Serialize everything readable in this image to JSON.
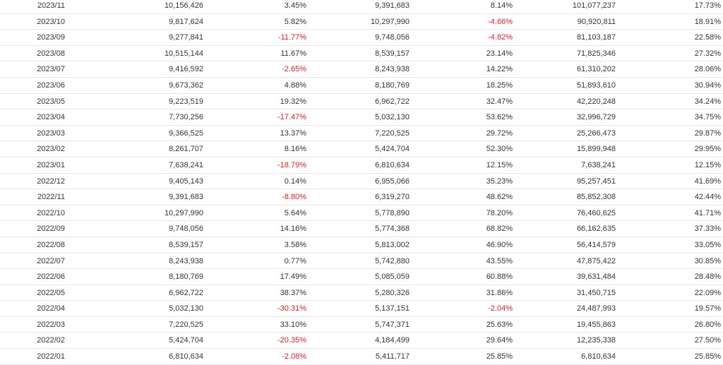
{
  "table": {
    "rows": [
      {
        "month": "2023/11",
        "revenue": "10,156,426",
        "mom": "3.45%",
        "last_year": "9,391,683",
        "yoy": "8.14%",
        "cumulative": "101,077,237",
        "cum_yoy": "17.73%"
      },
      {
        "month": "2023/10",
        "revenue": "9,817,624",
        "mom": "5.82%",
        "last_year": "10,297,990",
        "yoy": "-4.66%",
        "cumulative": "90,920,811",
        "cum_yoy": "18.91%"
      },
      {
        "month": "2023/09",
        "revenue": "9,277,841",
        "mom": "-11.77%",
        "last_year": "9,748,056",
        "yoy": "-4.82%",
        "cumulative": "81,103,187",
        "cum_yoy": "22.58%"
      },
      {
        "month": "2023/08",
        "revenue": "10,515,144",
        "mom": "11.67%",
        "last_year": "8,539,157",
        "yoy": "23.14%",
        "cumulative": "71,825,346",
        "cum_yoy": "27.32%"
      },
      {
        "month": "2023/07",
        "revenue": "9,416,592",
        "mom": "-2.65%",
        "last_year": "8,243,938",
        "yoy": "14.22%",
        "cumulative": "61,310,202",
        "cum_yoy": "28.06%"
      },
      {
        "month": "2023/06",
        "revenue": "9,673,362",
        "mom": "4.88%",
        "last_year": "8,180,769",
        "yoy": "18.25%",
        "cumulative": "51,893,610",
        "cum_yoy": "30.94%"
      },
      {
        "month": "2023/05",
        "revenue": "9,223,519",
        "mom": "19.32%",
        "last_year": "6,962,722",
        "yoy": "32.47%",
        "cumulative": "42,220,248",
        "cum_yoy": "34.24%"
      },
      {
        "month": "2023/04",
        "revenue": "7,730,256",
        "mom": "-17.47%",
        "last_year": "5,032,130",
        "yoy": "53.62%",
        "cumulative": "32,996,729",
        "cum_yoy": "34.75%"
      },
      {
        "month": "2023/03",
        "revenue": "9,366,525",
        "mom": "13.37%",
        "last_year": "7,220,525",
        "yoy": "29.72%",
        "cumulative": "25,266,473",
        "cum_yoy": "29.87%"
      },
      {
        "month": "2023/02",
        "revenue": "8,261,707",
        "mom": "8.16%",
        "last_year": "5,424,704",
        "yoy": "52.30%",
        "cumulative": "15,899,948",
        "cum_yoy": "29.95%"
      },
      {
        "month": "2023/01",
        "revenue": "7,638,241",
        "mom": "-18.79%",
        "last_year": "6,810,634",
        "yoy": "12.15%",
        "cumulative": "7,638,241",
        "cum_yoy": "12.15%"
      },
      {
        "month": "2022/12",
        "revenue": "9,405,143",
        "mom": "0.14%",
        "last_year": "6,955,066",
        "yoy": "35.23%",
        "cumulative": "95,257,451",
        "cum_yoy": "41.69%"
      },
      {
        "month": "2022/11",
        "revenue": "9,391,683",
        "mom": "-8.80%",
        "last_year": "6,319,270",
        "yoy": "48.62%",
        "cumulative": "85,852,308",
        "cum_yoy": "42.44%"
      },
      {
        "month": "2022/10",
        "revenue": "10,297,990",
        "mom": "5.64%",
        "last_year": "5,778,890",
        "yoy": "78.20%",
        "cumulative": "76,460,625",
        "cum_yoy": "41.71%"
      },
      {
        "month": "2022/09",
        "revenue": "9,748,056",
        "mom": "14.16%",
        "last_year": "5,774,368",
        "yoy": "68.82%",
        "cumulative": "66,162,635",
        "cum_yoy": "37.33%"
      },
      {
        "month": "2022/08",
        "revenue": "8,539,157",
        "mom": "3.58%",
        "last_year": "5,813,002",
        "yoy": "46.90%",
        "cumulative": "56,414,579",
        "cum_yoy": "33.05%"
      },
      {
        "month": "2022/07",
        "revenue": "8,243,938",
        "mom": "0.77%",
        "last_year": "5,742,880",
        "yoy": "43.55%",
        "cumulative": "47,875,422",
        "cum_yoy": "30.85%"
      },
      {
        "month": "2022/06",
        "revenue": "8,180,769",
        "mom": "17.49%",
        "last_year": "5,085,059",
        "yoy": "60.88%",
        "cumulative": "39,631,484",
        "cum_yoy": "28.48%"
      },
      {
        "month": "2022/05",
        "revenue": "6,962,722",
        "mom": "38.37%",
        "last_year": "5,280,326",
        "yoy": "31.86%",
        "cumulative": "31,450,715",
        "cum_yoy": "22.09%"
      },
      {
        "month": "2022/04",
        "revenue": "5,032,130",
        "mom": "-30.31%",
        "last_year": "5,137,151",
        "yoy": "-2.04%",
        "cumulative": "24,487,993",
        "cum_yoy": "19.57%"
      },
      {
        "month": "2022/03",
        "revenue": "7,220,525",
        "mom": "33.10%",
        "last_year": "5,747,371",
        "yoy": "25.63%",
        "cumulative": "19,455,863",
        "cum_yoy": "26.80%"
      },
      {
        "month": "2022/02",
        "revenue": "5,424,704",
        "mom": "-20.35%",
        "last_year": "4,184,499",
        "yoy": "29.64%",
        "cumulative": "12,235,338",
        "cum_yoy": "27.50%"
      },
      {
        "month": "2022/01",
        "revenue": "6,810,634",
        "mom": "-2.08%",
        "last_year": "5,411,717",
        "yoy": "25.85%",
        "cumulative": "6,810,634",
        "cum_yoy": "25.85%"
      }
    ]
  },
  "colors": {
    "negative": "#ee1c25",
    "text": "#333333",
    "divider": "#e8e8e8"
  }
}
